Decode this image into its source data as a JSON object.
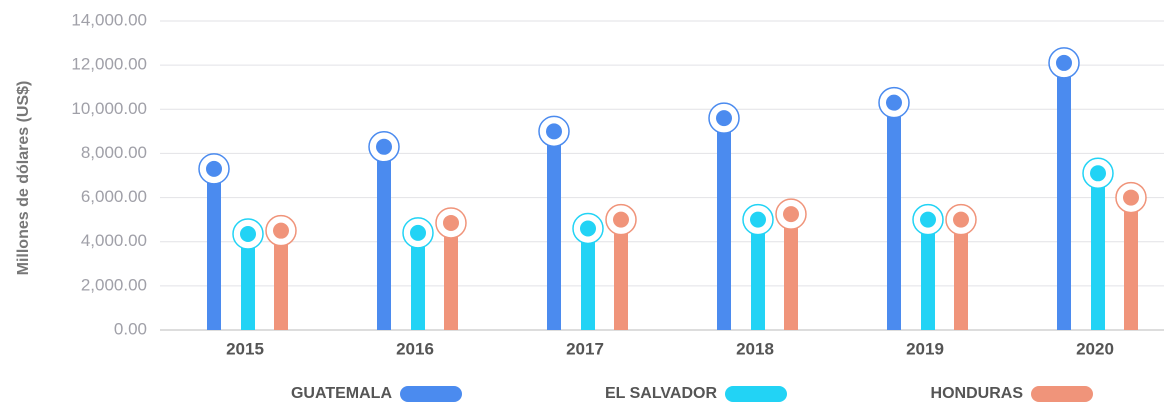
{
  "chart_data": {
    "type": "lollipop-bar",
    "y_label": "Millones de dólares (US$)",
    "categories": [
      "2015",
      "2016",
      "2017",
      "2018",
      "2019",
      "2020"
    ],
    "series": [
      {
        "name": "GUATEMALA",
        "color": "#4b8bef",
        "values": [
          7300,
          8300,
          9000,
          9600,
          10300,
          12100
        ]
      },
      {
        "name": "EL SALVADOR",
        "color": "#22d3f5",
        "values": [
          4350,
          4400,
          4600,
          5000,
          5000,
          7100
        ]
      },
      {
        "name": "HONDURAS",
        "color": "#f0947a",
        "values": [
          4500,
          4850,
          5000,
          5250,
          5000,
          6000
        ]
      }
    ],
    "ylim": [
      0,
      14000
    ],
    "yticks": [
      {
        "value": 0,
        "label": "0.00"
      },
      {
        "value": 2000,
        "label": "2,000.00"
      },
      {
        "value": 4000,
        "label": "4,000.00"
      },
      {
        "value": 6000,
        "label": "6,000.00"
      },
      {
        "value": 8000,
        "label": "8,000.00"
      },
      {
        "value": 10000,
        "label": "10,000.00"
      },
      {
        "value": 12000,
        "label": "12,000.00"
      },
      {
        "value": 14000,
        "label": "14,000.00"
      }
    ],
    "grid": true
  }
}
